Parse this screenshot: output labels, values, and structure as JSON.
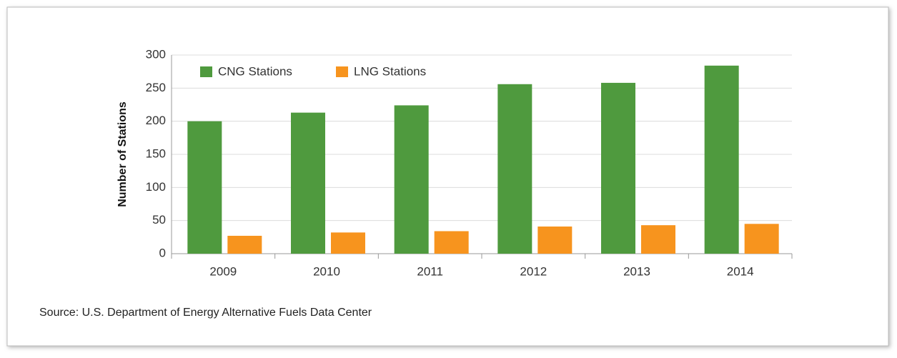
{
  "chart_data": {
    "type": "bar",
    "ylabel": "Number of Stations",
    "source": "Source: U.S. Department of Energy Alternative Fuels Data Center",
    "categories": [
      "2009",
      "2010",
      "2011",
      "2012",
      "2013",
      "2014"
    ],
    "series": [
      {
        "name": "CNG Stations",
        "color": "#4f9a3e",
        "values": [
          200,
          213,
          224,
          256,
          258,
          284
        ]
      },
      {
        "name": "LNG Stations",
        "color": "#f7941e",
        "values": [
          27,
          32,
          34,
          41,
          43,
          45
        ]
      }
    ],
    "ylim": [
      0,
      300
    ],
    "yticks": [
      0,
      50,
      100,
      150,
      200,
      250,
      300
    ],
    "grid": true,
    "legend": "top-left"
  }
}
